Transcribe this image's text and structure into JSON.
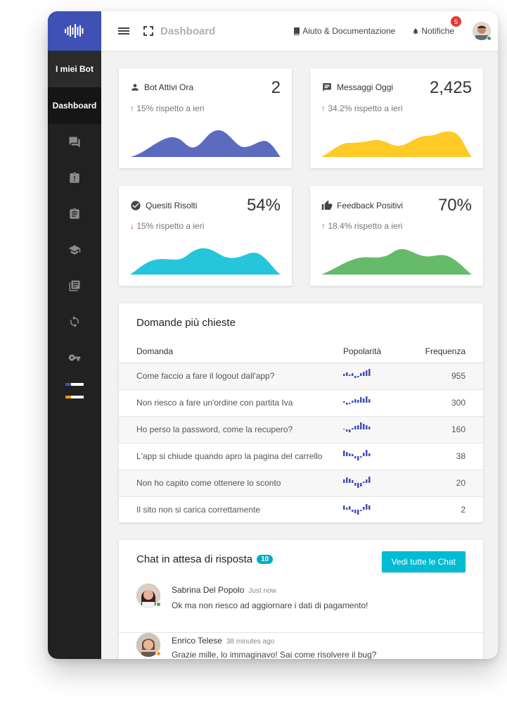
{
  "topbar": {
    "title": "Dashboard",
    "help_label": "Aiuto & Documentazione",
    "notif_label": "Notifiche",
    "notif_count": "5"
  },
  "sidebar": {
    "my_bots": "I miei Bot",
    "dashboard": "Dashboard",
    "icons": [
      "forum-icon",
      "clipboard-alert-icon",
      "clipboard-list-icon",
      "school-icon",
      "library-books-icon",
      "sync-icon",
      "key-icon"
    ]
  },
  "stats": [
    {
      "label": "Bot Attivi Ora",
      "value": "2",
      "delta": "15% rispetto a ieri",
      "dir": "up",
      "color": "#5c6bc0",
      "icon": "person-icon"
    },
    {
      "label": "Messaggi Oggi",
      "value": "2,425",
      "delta": "34.2% rispetto a ieri",
      "dir": "up",
      "color": "#ffca28",
      "icon": "message-icon"
    },
    {
      "label": "Quesiti Risolti",
      "value": "54%",
      "delta": "15% rispetto a ieri",
      "dir": "down",
      "color": "#26c6da",
      "icon": "check-circle-icon"
    },
    {
      "label": "Feedback Positivi",
      "value": "70%",
      "delta": "18.4% rispetto a ieri",
      "dir": "up",
      "color": "#66bb6a",
      "icon": "thumb-up-icon"
    }
  ],
  "faq": {
    "title": "Domande più chieste",
    "col_question": "Domanda",
    "col_popularity": "Popolarità",
    "col_frequency": "Frequenza",
    "rows": [
      {
        "q": "Come faccio a fare il logout dall'app?",
        "f": "955",
        "spark": [
          3,
          5,
          2,
          4,
          -3,
          -2,
          4,
          6,
          8,
          10
        ]
      },
      {
        "q": "Non riesco a fare un'ordine con partita Iva",
        "f": "300",
        "spark": [
          2,
          -3,
          -2,
          3,
          5,
          4,
          8,
          6,
          9,
          5
        ]
      },
      {
        "q": "Ho perso la password, come la recupero?",
        "f": "160",
        "spark": [
          1,
          -3,
          -4,
          2,
          5,
          6,
          10,
          8,
          6,
          4
        ]
      },
      {
        "q": "L'app si chiude quando apro la pagina del carrello",
        "f": "38",
        "spark": [
          8,
          6,
          4,
          3,
          -3,
          -6,
          -2,
          5,
          9,
          4
        ]
      },
      {
        "q": "Non ho capito come ottenere lo sconto",
        "f": "20",
        "spark": [
          5,
          8,
          6,
          4,
          -4,
          -7,
          -5,
          2,
          5,
          9
        ]
      },
      {
        "q": "Il sito non si carica correttamente",
        "f": "2",
        "spark": [
          6,
          3,
          5,
          -3,
          -5,
          -7,
          -2,
          4,
          8,
          6
        ]
      }
    ]
  },
  "chat": {
    "title": "Chat in attesa di risposta",
    "count": "10",
    "button": "Vedi tutte le Chat",
    "items": [
      {
        "name": "Sabrina Del Popolo",
        "time": "Just now",
        "msg": "Ok ma non riesco ad aggiornare i dati di pagamento!",
        "status": "#43a047",
        "avatar": "#8d5a48"
      },
      {
        "name": "Enrico Telese",
        "time": "38 minutes ago",
        "msg": "Grazie mille, lo immaginavo! Sai come risolvere il bug?",
        "status": "#ff9800",
        "avatar": "#a0714f"
      }
    ]
  }
}
